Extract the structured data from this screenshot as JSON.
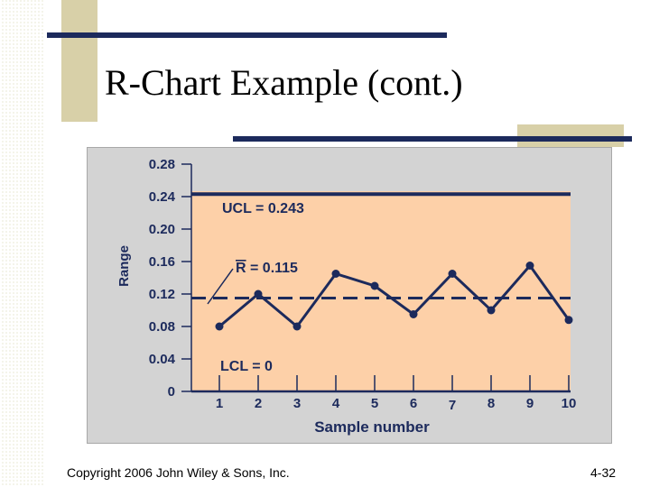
{
  "slide": {
    "title": "R-Chart Example (cont.)",
    "copyright": "Copyright 2006 John Wiley & Sons, Inc.",
    "page_number": "4-32"
  },
  "colors": {
    "plot_background": "#fdd0a8",
    "frame_background": "#d3d3d3",
    "line": "#1c2a5c",
    "accent_bar": "#1c2a5c",
    "tan": "#d8d0a8"
  },
  "chart_data": {
    "type": "line",
    "title": "",
    "xlabel": "Sample number",
    "ylabel": "Range",
    "x": [
      1,
      2,
      3,
      4,
      5,
      6,
      7,
      8,
      9,
      10
    ],
    "x_tick_labels": [
      "1",
      "2",
      "3",
      "4",
      "5",
      "6",
      "7",
      "8",
      "9",
      "10"
    ],
    "y_tick_labels": [
      "0.28",
      "0.24",
      "0.20",
      "0.16",
      "0.12",
      "0.08",
      "0.04",
      "0"
    ],
    "y_ticks": [
      0.28,
      0.24,
      0.2,
      0.16,
      0.12,
      0.08,
      0.04,
      0
    ],
    "ylim": [
      0,
      0.28
    ],
    "grid": false,
    "series": [
      {
        "values": [
          0.08,
          0.12,
          0.08,
          0.145,
          0.13,
          0.095,
          0.145,
          0.1,
          0.155,
          0.088
        ]
      }
    ],
    "reference_lines": [
      {
        "label": "UCL = 0.243",
        "value": 0.243,
        "style": "solid"
      },
      {
        "label_prefix": "R",
        "label_suffix": " = 0.115",
        "value": 0.115,
        "style": "dashed"
      },
      {
        "label": "LCL = 0",
        "value": 0,
        "style": "solid"
      }
    ]
  }
}
